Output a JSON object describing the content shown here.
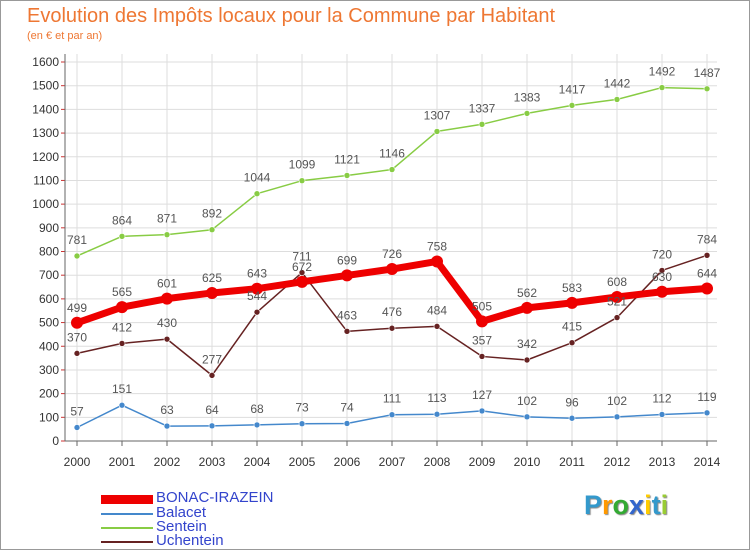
{
  "title": "Evolution des Impôts locaux pour la Commune par Habitant",
  "subtitle": "(en € et par an)",
  "brand": {
    "letters": [
      "P",
      "r",
      "o",
      "x",
      "i",
      "t",
      "i"
    ],
    "colors": [
      "#3399cc",
      "#ff9900",
      "#33aa33",
      "#3366cc",
      "#ffcc00",
      "#3399cc",
      "#99cc33"
    ]
  },
  "colors": {
    "title": "#ee7733",
    "legend_text": "#3344cc",
    "grid": "#dddddd",
    "axis": "#666666",
    "tick_text": "#333333",
    "label_text": "#555555"
  },
  "chart_data": {
    "type": "line",
    "title": "Evolution des Impôts locaux pour la Commune par Habitant",
    "subtitle": "(en € et par an)",
    "xlabel": "",
    "ylabel": "",
    "ylim": [
      0,
      1600
    ],
    "ytick_step": 100,
    "grid": true,
    "legend_position": "bottom-left",
    "x": [
      "2000",
      "2001",
      "2002",
      "2003",
      "2004",
      "2005",
      "2006",
      "2007",
      "2008",
      "2009",
      "2010",
      "2011",
      "2012",
      "2013",
      "2014"
    ],
    "series": [
      {
        "name": "BONAC-IRAZEIN",
        "color": "#ee0000",
        "values": [
          499,
          565,
          601,
          625,
          643,
          672,
          699,
          726,
          758,
          505,
          562,
          583,
          608,
          630,
          644
        ]
      },
      {
        "name": "Balacet",
        "color": "#4488cc",
        "values": [
          57,
          151,
          63,
          64,
          68,
          73,
          74,
          111,
          113,
          127,
          102,
          96,
          102,
          112,
          119
        ]
      },
      {
        "name": "Sentein",
        "color": "#88cc44",
        "values": [
          781,
          864,
          871,
          892,
          1044,
          1099,
          1121,
          1146,
          1307,
          1337,
          1383,
          1417,
          1442,
          1492,
          1487
        ]
      },
      {
        "name": "Uchentein",
        "color": "#662222",
        "values": [
          370,
          412,
          430,
          277,
          544,
          711,
          463,
          476,
          484,
          357,
          342,
          415,
          521,
          720,
          784
        ]
      }
    ]
  }
}
